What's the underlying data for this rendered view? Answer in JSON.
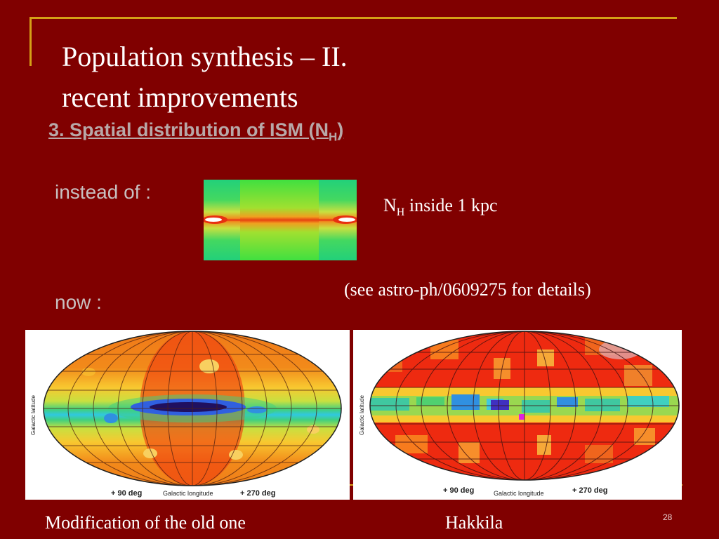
{
  "slide": {
    "title_line1": "Population synthesis – II.",
    "title_line2": "recent improvements",
    "subtitle_main": "3. Spatial distribution of ISM (N",
    "subtitle_sub": "H",
    "subtitle_end": ")",
    "instead_label": "instead of :",
    "nh_main": "N",
    "nh_sub": "H",
    "nh_rest": " inside 1 kpc",
    "reference": "(see astro-ph/0609275 for details)",
    "now_label": "now :",
    "caption_left": "Modification of the old one",
    "caption_right": "Hakkila",
    "page_number": "28"
  },
  "maps": {
    "axis_latitude": "Galactic latitude",
    "axis_longitude": "Galactic longitude",
    "tick_left": "+ 90 deg",
    "tick_right": "+ 270 deg"
  },
  "colors": {
    "background": "#800000",
    "accent_line": "#d4a017",
    "subtitle": "#b8a8a8"
  }
}
